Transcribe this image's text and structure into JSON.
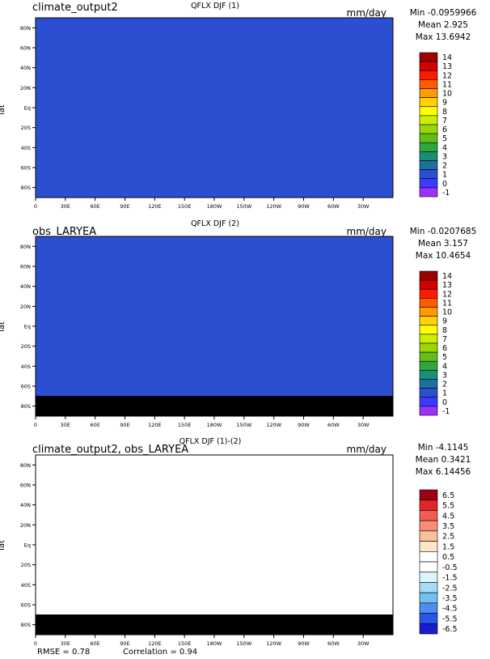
{
  "chart_data": [
    {
      "type": "heatmap",
      "case_label": "climate_output2",
      "title": "QFLX DJF (1)",
      "units": "mm/day",
      "stats": {
        "min": "Min -0.0959966",
        "mean": "Mean 2.925",
        "max": "Max 13.6942"
      },
      "ylabel": "lat",
      "x_ticks": [
        "0",
        "30E",
        "60E",
        "90E",
        "120E",
        "150E",
        "180W",
        "150W",
        "120W",
        "90W",
        "60W",
        "30W"
      ],
      "y_ticks": [
        "80N",
        "60N",
        "40N",
        "20N",
        "Eq",
        "20S",
        "40S",
        "60S",
        "80S"
      ],
      "colorbar": {
        "levels": [
          "14",
          "13",
          "12",
          "11",
          "10",
          "9",
          "8",
          "7",
          "6",
          "5",
          "4",
          "3",
          "2",
          "1",
          "0",
          "-1"
        ],
        "colors": [
          "#9e0000",
          "#d20000",
          "#ff1a00",
          "#ff5a00",
          "#ff9a00",
          "#ffd200",
          "#ffff00",
          "#ccef00",
          "#99d700",
          "#63bf18",
          "#30a640",
          "#189073",
          "#1f6fa0",
          "#2c4fd2",
          "#3b3bff",
          "#9b30ff"
        ]
      }
    },
    {
      "type": "heatmap",
      "case_label": "obs_LARYEA",
      "title": "QFLX DJF (2)",
      "units": "mm/day",
      "stats": {
        "min": "Min -0.0207685",
        "mean": "Mean 3.157",
        "max": "Max 10.4654"
      },
      "ylabel": "lat",
      "x_ticks": [
        "0",
        "30E",
        "60E",
        "90E",
        "120E",
        "150E",
        "180W",
        "150W",
        "120W",
        "90W",
        "60W",
        "30W"
      ],
      "y_ticks": [
        "80N",
        "60N",
        "40N",
        "20N",
        "Eq",
        "20S",
        "40S",
        "60S",
        "80S"
      ],
      "colorbar": {
        "levels": [
          "14",
          "13",
          "12",
          "11",
          "10",
          "9",
          "8",
          "7",
          "6",
          "5",
          "4",
          "3",
          "2",
          "1",
          "0",
          "-1"
        ],
        "colors": [
          "#9e0000",
          "#d20000",
          "#ff1a00",
          "#ff5a00",
          "#ff9a00",
          "#ffd200",
          "#ffff00",
          "#ccef00",
          "#99d700",
          "#63bf18",
          "#30a640",
          "#189073",
          "#1f6fa0",
          "#2c4fd2",
          "#3b3bff",
          "#9b30ff"
        ]
      }
    },
    {
      "type": "heatmap",
      "case_label": "climate_output2, obs_LARYEA",
      "title": "QFLX DJF (1)-(2)",
      "units": "mm/day",
      "stats": {
        "min": "Min -4.1145",
        "mean": "Mean 0.3421",
        "max": "Max 6.14456"
      },
      "ylabel": "lat",
      "x_ticks": [
        "0",
        "30E",
        "60E",
        "90E",
        "120E",
        "150E",
        "180W",
        "150W",
        "120W",
        "90W",
        "60W",
        "30W"
      ],
      "y_ticks": [
        "80N",
        "60N",
        "40N",
        "20N",
        "Eq",
        "20S",
        "40S",
        "60S",
        "80S"
      ],
      "colorbar": {
        "levels": [
          "6.5",
          "5.5",
          "4.5",
          "3.5",
          "2.5",
          "1.5",
          "0.5",
          "-0.5",
          "-1.5",
          "-2.5",
          "-3.5",
          "-4.5",
          "-5.5",
          "-6.5"
        ],
        "colors": [
          "#9e0015",
          "#e3242b",
          "#f25c52",
          "#f98c75",
          "#fcbf9c",
          "#fde6c9",
          "#ffffff",
          "#ffffff",
          "#d9f3ff",
          "#a7dcf5",
          "#74c0ee",
          "#4b8df0",
          "#2a55e8",
          "#1a1ad0"
        ]
      },
      "footer": {
        "rmse": "RMSE = 0.78",
        "correlation": "Correlation = 0.94"
      }
    }
  ]
}
